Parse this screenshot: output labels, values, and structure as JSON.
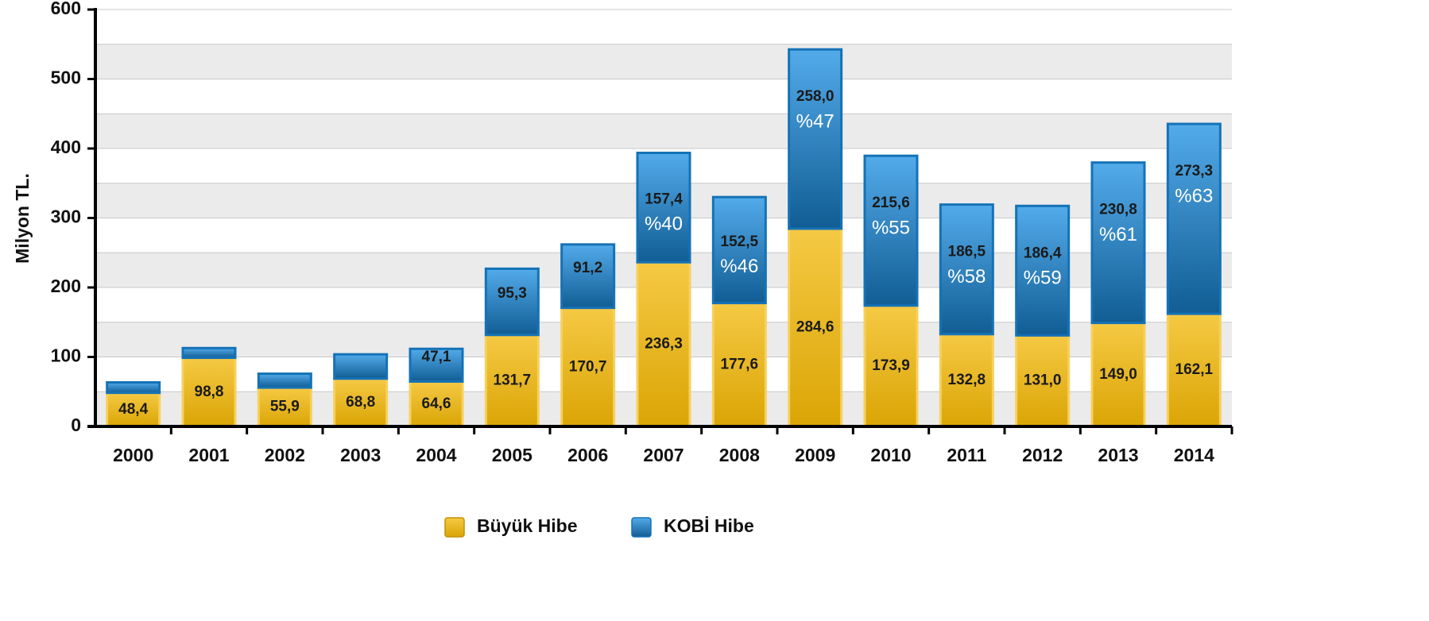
{
  "chart_data": {
    "type": "stacked_bar",
    "y_axis_label": "Milyon TL.",
    "categories": [
      "2000",
      "2001",
      "2002",
      "2003",
      "2004",
      "2005",
      "2006",
      "2007",
      "2008",
      "2009",
      "2010",
      "2011",
      "2012",
      "2013",
      "2014"
    ],
    "series": [
      {
        "name": "Büyük Hibe",
        "color": "#f2b705",
        "values": [
          48.4,
          98.8,
          55.9,
          68.8,
          64.6,
          131.7,
          170.7,
          236.3,
          177.6,
          284.6,
          173.9,
          132.8,
          131.0,
          149.0,
          162.1
        ],
        "value_labels": [
          "48,4",
          "98,8",
          "55,9",
          "68,8",
          "64,6",
          "131,7",
          "170,7",
          "236,3",
          "177,6",
          "284,6",
          "173,9",
          "132,8",
          "131,0",
          "149,0",
          "162,1"
        ]
      },
      {
        "name": "KOBİ Hibe",
        "color": "#1a8fe3",
        "values": [
          15,
          14,
          20,
          35,
          47.1,
          95.3,
          91.2,
          157.4,
          152.5,
          258.0,
          215.6,
          186.5,
          186.4,
          230.8,
          273.3
        ],
        "value_labels": [
          null,
          null,
          null,
          null,
          "47,1",
          "95,3",
          "91,2",
          "157,4",
          "152,5",
          "258,0",
          "215,6",
          "186,5",
          "186,4",
          "230,8",
          "273,3"
        ]
      }
    ],
    "annotations": [
      {
        "x": "2007",
        "text": "%40"
      },
      {
        "x": "2008",
        "text": "%46"
      },
      {
        "x": "2009",
        "text": "%47"
      },
      {
        "x": "2010",
        "text": "%55"
      },
      {
        "x": "2011",
        "text": "%58"
      },
      {
        "x": "2012",
        "text": "%59"
      },
      {
        "x": "2013",
        "text": "%61"
      },
      {
        "x": "2014",
        "text": "%63"
      }
    ],
    "ylim": [
      0,
      600
    ],
    "yticks": [
      0,
      100,
      200,
      300,
      400,
      500,
      600
    ],
    "grid": true,
    "legend": "bottom"
  }
}
